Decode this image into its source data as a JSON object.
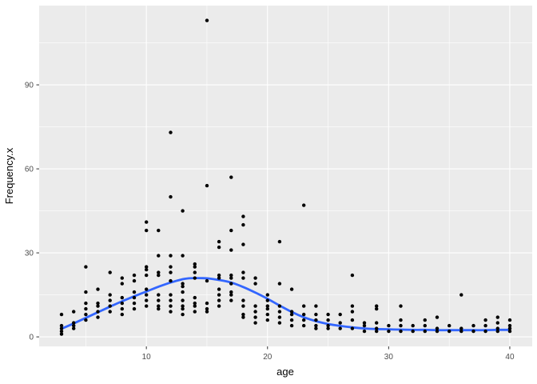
{
  "chart_data": {
    "type": "scatter",
    "title": "",
    "xlabel": "age",
    "ylabel": "Frequency.x",
    "legend": "none",
    "grid": "on",
    "panel_bg": "#EBEBEB",
    "grid_color": "#FFFFFF",
    "point_color": "#000000",
    "smooth_color": "#3366FF",
    "tick_color": "#333333",
    "tick_label_color": "#4D4D4D",
    "xlim": [
      1.15,
      41.85
    ],
    "ylim": [
      -3.4,
      118.3
    ],
    "x_major_breaks": [
      10,
      20,
      30,
      40
    ],
    "x_minor_breaks": [
      5,
      15,
      25,
      35
    ],
    "y_major_breaks": [
      0,
      30,
      60,
      90
    ],
    "y_minor_breaks": [
      15,
      45,
      75,
      105
    ],
    "points_by_age": [
      {
        "age": 3,
        "values": [
          1,
          2,
          3,
          4,
          8
        ]
      },
      {
        "age": 4,
        "values": [
          3,
          4,
          5,
          9
        ]
      },
      {
        "age": 5,
        "values": [
          6,
          8,
          10,
          12,
          16,
          25
        ]
      },
      {
        "age": 6,
        "values": [
          7,
          9,
          11,
          12,
          17
        ]
      },
      {
        "age": 7,
        "values": [
          9,
          11,
          13,
          15,
          23
        ]
      },
      {
        "age": 8,
        "values": [
          8,
          10,
          12,
          14,
          19,
          21
        ]
      },
      {
        "age": 9,
        "values": [
          10,
          12,
          14,
          16,
          20,
          22
        ]
      },
      {
        "age": 10,
        "values": [
          11,
          13,
          15,
          17,
          22,
          24,
          25,
          38,
          41
        ]
      },
      {
        "age": 11,
        "values": [
          10,
          11,
          13,
          15,
          22,
          23,
          29,
          38
        ]
      },
      {
        "age": 12,
        "values": [
          9,
          11,
          13,
          15,
          20,
          23,
          25,
          29,
          50,
          73
        ]
      },
      {
        "age": 13,
        "values": [
          8,
          10,
          11,
          13,
          16,
          18,
          19,
          29,
          45
        ]
      },
      {
        "age": 14,
        "values": [
          9,
          11,
          12,
          14,
          21,
          23,
          25,
          26
        ]
      },
      {
        "age": 15,
        "values": [
          9,
          10,
          12,
          20,
          54,
          113
        ]
      },
      {
        "age": 16,
        "values": [
          11,
          13,
          15,
          17,
          21,
          22,
          32,
          34
        ]
      },
      {
        "age": 17,
        "values": [
          13,
          15,
          16,
          19,
          21,
          22,
          31,
          38,
          57
        ]
      },
      {
        "age": 18,
        "values": [
          7,
          8,
          11,
          13,
          21,
          23,
          33,
          40,
          43
        ]
      },
      {
        "age": 19,
        "values": [
          5,
          7,
          9,
          11,
          19,
          21
        ]
      },
      {
        "age": 20,
        "values": [
          6,
          8,
          10,
          11,
          13,
          15
        ]
      },
      {
        "age": 21,
        "values": [
          5,
          7,
          9,
          11,
          19,
          34
        ]
      },
      {
        "age": 22,
        "values": [
          4,
          6,
          8,
          9,
          17
        ]
      },
      {
        "age": 23,
        "values": [
          4,
          6,
          8,
          11,
          47
        ]
      },
      {
        "age": 24,
        "values": [
          3,
          4,
          6,
          8,
          11
        ]
      },
      {
        "age": 25,
        "values": [
          3,
          4,
          6,
          8
        ]
      },
      {
        "age": 26,
        "values": [
          3,
          5,
          8
        ]
      },
      {
        "age": 27,
        "values": [
          3,
          6,
          9,
          11,
          22
        ]
      },
      {
        "age": 28,
        "values": [
          2,
          4,
          5
        ]
      },
      {
        "age": 29,
        "values": [
          2,
          3,
          5,
          10,
          11
        ]
      },
      {
        "age": 30,
        "values": [
          2,
          4
        ]
      },
      {
        "age": 31,
        "values": [
          2,
          4,
          6,
          11
        ]
      },
      {
        "age": 32,
        "values": [
          2,
          4
        ]
      },
      {
        "age": 33,
        "values": [
          2,
          4,
          6
        ]
      },
      {
        "age": 34,
        "values": [
          2,
          3,
          7
        ]
      },
      {
        "age": 35,
        "values": [
          2,
          4
        ]
      },
      {
        "age": 36,
        "values": [
          2,
          3,
          15
        ]
      },
      {
        "age": 37,
        "values": [
          2,
          4
        ]
      },
      {
        "age": 38,
        "values": [
          2,
          4,
          6
        ]
      },
      {
        "age": 39,
        "values": [
          2,
          3,
          5,
          7
        ]
      },
      {
        "age": 40,
        "values": [
          2,
          3,
          4,
          6
        ]
      }
    ],
    "smooth_line": [
      [
        3,
        2.9
      ],
      [
        4,
        4.8
      ],
      [
        5,
        6.8
      ],
      [
        6,
        8.8
      ],
      [
        7,
        10.8
      ],
      [
        8,
        12.7
      ],
      [
        9,
        14.5
      ],
      [
        10,
        16.2
      ],
      [
        11,
        17.9
      ],
      [
        12,
        19.4
      ],
      [
        13,
        20.6
      ],
      [
        13.5,
        20.9
      ],
      [
        14,
        21.0
      ],
      [
        15,
        20.9
      ],
      [
        16,
        20.3
      ],
      [
        17,
        19.4
      ],
      [
        18,
        17.8
      ],
      [
        19,
        15.8
      ],
      [
        20,
        13.6
      ],
      [
        21,
        11.2
      ],
      [
        22,
        8.9
      ],
      [
        23,
        7.0
      ],
      [
        24,
        5.6
      ],
      [
        25,
        4.6
      ],
      [
        26,
        3.9
      ],
      [
        27,
        3.4
      ],
      [
        28,
        3.0
      ],
      [
        29,
        2.8
      ],
      [
        30,
        2.7
      ],
      [
        31,
        2.6
      ],
      [
        32,
        2.5
      ],
      [
        33,
        2.5
      ],
      [
        34,
        2.4
      ],
      [
        35,
        2.4
      ],
      [
        36,
        2.4
      ],
      [
        37,
        2.4
      ],
      [
        38,
        2.4
      ],
      [
        39,
        2.5
      ],
      [
        40,
        2.5
      ]
    ]
  }
}
